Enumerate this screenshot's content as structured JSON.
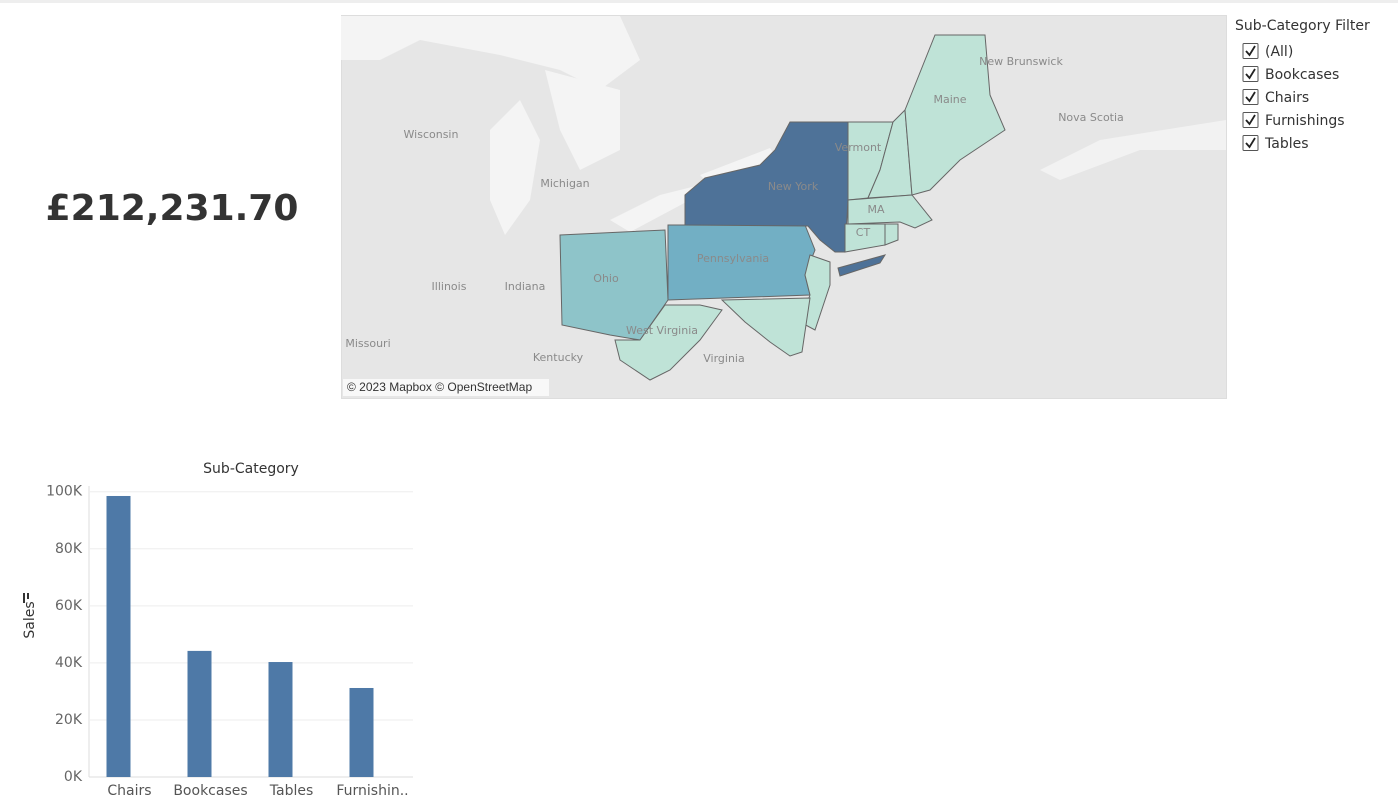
{
  "kpi": {
    "value": "£212,231.70"
  },
  "map": {
    "labels": [
      "New Brunswick",
      "Nova Scotia",
      "Maine",
      "Vermont",
      "MA",
      "CT",
      "New York",
      "Pennsylvania",
      "Ohio",
      "West Virginia",
      "Kentucky",
      "Virginia",
      "Missouri",
      "Illinois",
      "Indiana",
      "Michigan",
      "Wisconsin"
    ],
    "attribution": "© 2023 Mapbox © OpenStreetMap"
  },
  "filter": {
    "title": "Sub-Category Filter",
    "items": [
      "(All)",
      "Bookcases",
      "Chairs",
      "Furnishings",
      "Tables"
    ]
  },
  "chart_data": {
    "type": "bar",
    "title": "Sub-Category",
    "y_label": "Sales",
    "categories": [
      "Chairs",
      "Bookcases",
      "Tables",
      "Furnishin.."
    ],
    "values": [
      98500,
      44200,
      40300,
      31200
    ],
    "color": "#4e79a7",
    "ylim": [
      0,
      102000
    ],
    "yticks": [
      {
        "value": 0,
        "label": "0K"
      },
      {
        "value": 20000,
        "label": "20K"
      },
      {
        "value": 40000,
        "label": "40K"
      },
      {
        "value": 60000,
        "label": "60K"
      },
      {
        "value": 80000,
        "label": "80K"
      },
      {
        "value": 100000,
        "label": "100K"
      }
    ],
    "grid": true
  }
}
